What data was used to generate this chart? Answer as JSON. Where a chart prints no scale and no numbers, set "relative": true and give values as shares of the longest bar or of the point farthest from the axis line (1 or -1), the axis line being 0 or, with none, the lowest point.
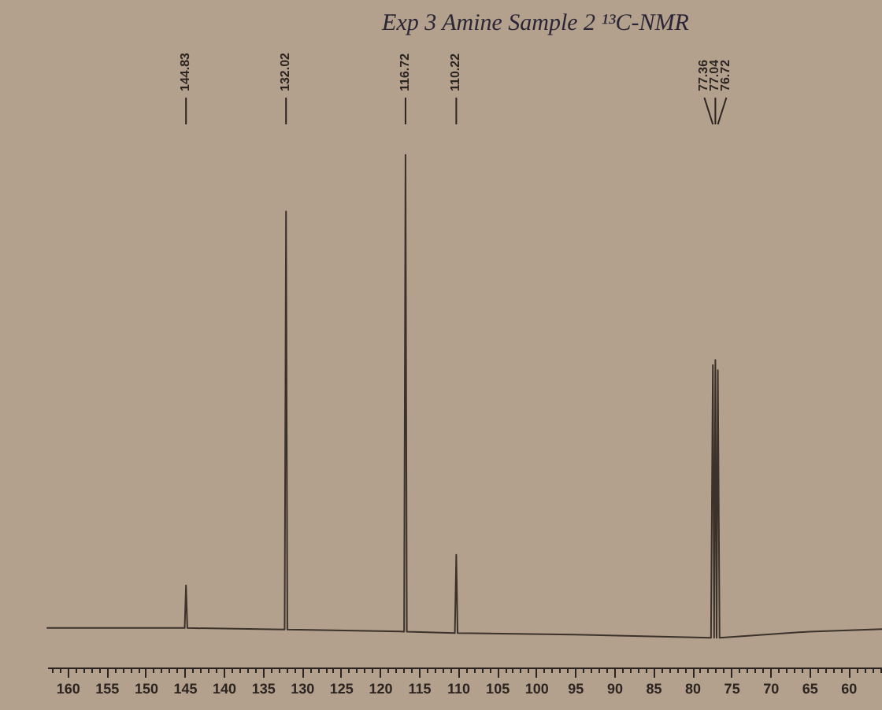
{
  "chart_data": {
    "type": "line",
    "title": "Exp 3 Amine Sample 2 ¹³C-NMR",
    "relative": true,
    "line_style": "solid",
    "series": [
      {
        "color": "#3b322c",
        "x": [
          162.6,
          145.0,
          144.83,
          144.66,
          132.2,
          132.02,
          131.85,
          116.9,
          116.72,
          116.55,
          110.4,
          110.22,
          110.05,
          95,
          77.6,
          77.36,
          77.2,
          77.04,
          76.88,
          76.72,
          76.5,
          65,
          55.7
        ],
        "values": [
          0.077,
          0.077,
          0.16,
          0.077,
          0.074,
          0.89,
          0.074,
          0.07,
          1,
          0.07,
          0.067,
          0.22,
          0.067,
          0.064,
          0.058,
          0.59,
          0.058,
          0.6,
          0.058,
          0.58,
          0.058,
          0.07,
          0.075
        ]
      }
    ],
    "xlim": [
      162.6,
      55.7
    ],
    "xticks": [
      160,
      155,
      150,
      145,
      140,
      135,
      130,
      125,
      120,
      115,
      110,
      105,
      100,
      95,
      90,
      85,
      80,
      75,
      70,
      65,
      60,
      {
        "value": 162,
        "label": null
      },
      {
        "value": 161,
        "label": null
      },
      {
        "value": 159,
        "label": null
      },
      {
        "value": 158,
        "label": null
      },
      {
        "value": 157,
        "label": null
      },
      {
        "value": 156,
        "label": null
      },
      {
        "value": 154,
        "label": null
      },
      {
        "value": 153,
        "label": null
      },
      {
        "value": 152,
        "label": null
      },
      {
        "value": 151,
        "label": null
      },
      {
        "value": 149,
        "label": null
      },
      {
        "value": 148,
        "label": null
      },
      {
        "value": 147,
        "label": null
      },
      {
        "value": 146,
        "label": null
      },
      {
        "value": 144,
        "label": null
      },
      {
        "value": 143,
        "label": null
      },
      {
        "value": 142,
        "label": null
      },
      {
        "value": 141,
        "label": null
      },
      {
        "value": 139,
        "label": null
      },
      {
        "value": 138,
        "label": null
      },
      {
        "value": 137,
        "label": null
      },
      {
        "value": 136,
        "label": null
      },
      {
        "value": 134,
        "label": null
      },
      {
        "value": 133,
        "label": null
      },
      {
        "value": 132,
        "label": null
      },
      {
        "value": 131,
        "label": null
      },
      {
        "value": 129,
        "label": null
      },
      {
        "value": 128,
        "label": null
      },
      {
        "value": 127,
        "label": null
      },
      {
        "value": 126,
        "label": null
      },
      {
        "value": 124,
        "label": null
      },
      {
        "value": 123,
        "label": null
      },
      {
        "value": 122,
        "label": null
      },
      {
        "value": 121,
        "label": null
      },
      {
        "value": 119,
        "label": null
      },
      {
        "value": 118,
        "label": null
      },
      {
        "value": 117,
        "label": null
      },
      {
        "value": 116,
        "label": null
      },
      {
        "value": 114,
        "label": null
      },
      {
        "value": 113,
        "label": null
      },
      {
        "value": 112,
        "label": null
      },
      {
        "value": 111,
        "label": null
      },
      {
        "value": 109,
        "label": null
      },
      {
        "value": 108,
        "label": null
      },
      {
        "value": 107,
        "label": null
      },
      {
        "value": 106,
        "label": null
      },
      {
        "value": 104,
        "label": null
      },
      {
        "value": 103,
        "label": null
      },
      {
        "value": 102,
        "label": null
      },
      {
        "value": 101,
        "label": null
      },
      {
        "value": 99,
        "label": null
      },
      {
        "value": 98,
        "label": null
      },
      {
        "value": 97,
        "label": null
      },
      {
        "value": 96,
        "label": null
      },
      {
        "value": 94,
        "label": null
      },
      {
        "value": 93,
        "label": null
      },
      {
        "value": 92,
        "label": null
      },
      {
        "value": 91,
        "label": null
      },
      {
        "value": 89,
        "label": null
      },
      {
        "value": 88,
        "label": null
      },
      {
        "value": 87,
        "label": null
      },
      {
        "value": 86,
        "label": null
      },
      {
        "value": 84,
        "label": null
      },
      {
        "value": 83,
        "label": null
      },
      {
        "value": 82,
        "label": null
      },
      {
        "value": 81,
        "label": null
      },
      {
        "value": 79,
        "label": null
      },
      {
        "value": 78,
        "label": null
      },
      {
        "value": 77,
        "label": null
      },
      {
        "value": 76,
        "label": null
      },
      {
        "value": 74,
        "label": null
      },
      {
        "value": 73,
        "label": null
      },
      {
        "value": 72,
        "label": null
      },
      {
        "value": 71,
        "label": null
      },
      {
        "value": 69,
        "label": null
      },
      {
        "value": 68,
        "label": null
      },
      {
        "value": 67,
        "label": null
      },
      {
        "value": 66,
        "label": null
      },
      {
        "value": 64,
        "label": null
      },
      {
        "value": 63,
        "label": null
      },
      {
        "value": 62,
        "label": null
      },
      {
        "value": 61,
        "label": null
      },
      {
        "value": 59,
        "label": null
      },
      {
        "value": 58,
        "label": null
      },
      {
        "value": 57,
        "label": null
      },
      {
        "value": 56,
        "label": null
      }
    ],
    "annotations": [
      {
        "text": "144.83",
        "x": 144.83
      },
      {
        "text": "132.02",
        "x": 132.02
      },
      {
        "text": "116.72",
        "x": 116.72
      },
      {
        "text": "110.22",
        "x": 110.22
      },
      {
        "text": "77.36",
        "x": 77.36
      },
      {
        "text": "77.04",
        "x": 77.04
      },
      {
        "text": "76.72",
        "x": 76.72
      }
    ]
  }
}
